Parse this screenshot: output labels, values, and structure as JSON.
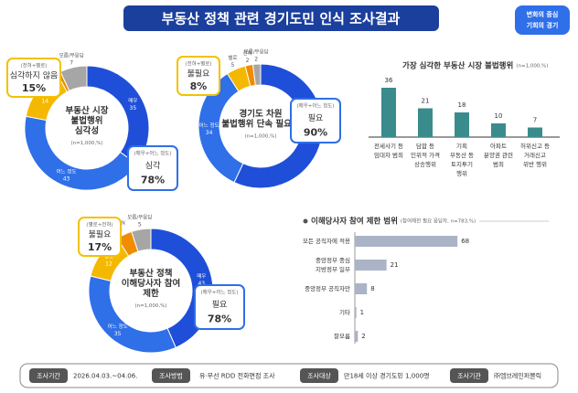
{
  "title": "부동산 정책 관련 경기도민 인식 조사결과",
  "logo": [
    "변화의 중심",
    "기회의 경기"
  ],
  "chart_data": [
    {
      "type": "donut",
      "title_lines": [
        "부동산 시장",
        "불법행위",
        "심각성"
      ],
      "note": "(n=1,000,%)",
      "categories": [
        "매우",
        "어느 정도",
        "별로",
        "전혀",
        "모름/무응답"
      ],
      "values": [
        35,
        43,
        14,
        1,
        7
      ],
      "colors": [
        "#1f4fd8",
        "#2f6fe8",
        "#f5b800",
        "#f08c00",
        "#a6a6a6"
      ],
      "callouts": [
        {
          "group": "(전혀+별로)",
          "label": "심각하지 않음",
          "value": 15,
          "value_label": "15%",
          "color": "#f2c200"
        },
        {
          "group": "(매우+어느 정도)",
          "label": "심각",
          "value": 78,
          "value_label": "78%",
          "color": "#2f6fe8"
        }
      ]
    },
    {
      "type": "donut",
      "title_lines": [
        "경기도 차원",
        "불법행위 단속 필요성"
      ],
      "note": "(n=1,000,%)",
      "categories": [
        "매우",
        "어느 정도",
        "별로",
        "전혀",
        "모름/무응답"
      ],
      "values": [
        57,
        34,
        5,
        2,
        2
      ],
      "colors": [
        "#1f4fd8",
        "#2f6fe8",
        "#f5b800",
        "#f08c00",
        "#a6a6a6"
      ],
      "callouts": [
        {
          "group": "(전혀+별로)",
          "label": "불필요",
          "value": 8,
          "value_label": "8%",
          "color": "#f2c200"
        },
        {
          "group": "(매우+어느 정도)",
          "label": "필요",
          "value": 90,
          "value_label": "90%",
          "color": "#2f6fe8"
        }
      ]
    },
    {
      "type": "donut",
      "title_lines": [
        "부동산 정책",
        "이해당사자 참여",
        "제한"
      ],
      "note": "(n=1,000,%)",
      "categories": [
        "매우",
        "어느 정도",
        "별로",
        "전혀",
        "모름/무응답"
      ],
      "values": [
        43,
        35,
        12,
        4,
        5
      ],
      "colors": [
        "#1f4fd8",
        "#2f6fe8",
        "#f5b800",
        "#f08c00",
        "#a6a6a6"
      ],
      "callouts": [
        {
          "group": "(별로+전혀)",
          "label": "불필요",
          "value": 17,
          "value_label": "17%",
          "color": "#f2c200"
        },
        {
          "group": "(매우+어느 정도)",
          "label": "필요",
          "value": 78,
          "value_label": "78%",
          "color": "#2f6fe8"
        }
      ]
    },
    {
      "type": "bar",
      "title": "가장 심각한 부동산 시장 불법행위",
      "note": "(n=1,000,%)",
      "color": "#3a8c8c",
      "categories": [
        [
          "전세사기 등",
          "임대차 범죄"
        ],
        [
          "담합 등",
          "인위적 가격",
          "상승행위"
        ],
        [
          "기획",
          "부동산 등",
          "토지투기",
          "행위"
        ],
        [
          "아파트",
          "분양권 관련",
          "범죄"
        ],
        [
          "허위신고 등",
          "거래신고",
          "위반 행위"
        ]
      ],
      "values": [
        36,
        21,
        18,
        10,
        7
      ]
    },
    {
      "type": "hbar",
      "title": "이해당사자 참여 제한 범위",
      "note": "(참여제한 필요 응답자, n=783,%)",
      "color": "#aab4c6",
      "categories": [
        [
          "모든 공직자에 적용"
        ],
        [
          "중앙정부 중심",
          "지방정부 일부"
        ],
        [
          "중앙정부 공직자만"
        ],
        [
          "기타"
        ],
        [
          "잘모름"
        ]
      ],
      "values": [
        68,
        21,
        8,
        1,
        2
      ]
    }
  ],
  "footer": [
    {
      "label": "조사기간",
      "value": "2026.04.03.~04.06."
    },
    {
      "label": "조사방법",
      "value": "유·무선 RDD 전화면접 조사"
    },
    {
      "label": "조사대상",
      "value": "만18세 이상 경기도민 1,000명"
    },
    {
      "label": "조사기관",
      "value": "㈜엠브레인퍼블릭"
    }
  ]
}
